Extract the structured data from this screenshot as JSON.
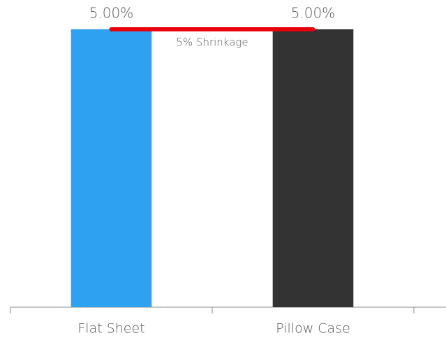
{
  "chart_data": {
    "type": "bar",
    "categories": [
      "Flat Sheet",
      "Pillow Case"
    ],
    "values": [
      5,
      5
    ],
    "value_labels": [
      "5.00%",
      "5.00%"
    ],
    "colors": [
      "#2ea1f0",
      "#333333"
    ],
    "annotation": {
      "text": "5% Shrinkage",
      "value": 5,
      "color": "#e8000b"
    }
  }
}
